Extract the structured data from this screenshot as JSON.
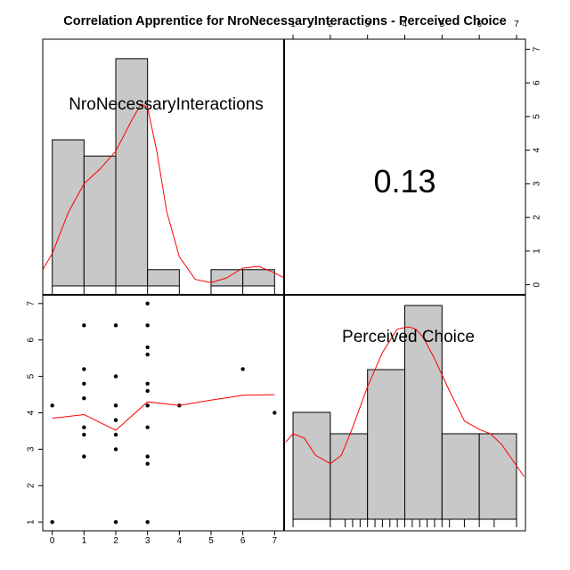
{
  "title": "Correlation Apprentice for NroNecessaryInteractions - Perceived Choice",
  "colors": {
    "bar_fill": "#c8c8c8",
    "bar_stroke": "#000000",
    "density": "#ff0000",
    "lowess": "#ff0000",
    "points": "#000000"
  },
  "chart_data": [
    {
      "type": "bar",
      "panel": "top-left diagonal histogram",
      "label": "NroNecessaryInteractions",
      "bins": [
        [
          0,
          1
        ],
        [
          1,
          2
        ],
        [
          2,
          3
        ],
        [
          3,
          4
        ],
        [
          4,
          5
        ],
        [
          5,
          6
        ],
        [
          6,
          7
        ]
      ],
      "counts": [
        9,
        8,
        14,
        1,
        0,
        1,
        1
      ],
      "density_curve": {
        "x": [
          -0.3,
          0,
          0.5,
          1,
          1.5,
          2,
          2.5,
          2.8,
          3,
          3.3,
          3.6,
          4,
          4.5,
          5,
          5.5,
          6,
          6.5,
          7,
          7.3
        ],
        "y": [
          1.0,
          2.0,
          4.5,
          6.3,
          7.2,
          8.3,
          10.2,
          11.2,
          11.0,
          8.2,
          4.6,
          1.8,
          0.4,
          0.2,
          0.5,
          1.1,
          1.2,
          0.8,
          0.5
        ]
      },
      "rug": [
        0,
        1,
        2,
        3,
        4,
        5,
        6,
        7
      ],
      "xlim": [
        -0.3,
        7.3
      ],
      "ylim": [
        0,
        15.2
      ]
    },
    {
      "type": "table",
      "panel": "top-right correlation",
      "correlation": "0.13",
      "top_axis_ticks": [
        "1",
        "2",
        "3",
        "4",
        "5",
        "6",
        "7"
      ],
      "right_axis_ticks": [
        "0",
        "1",
        "2",
        "3",
        "4",
        "5",
        "6",
        "7"
      ]
    },
    {
      "type": "scatter",
      "panel": "bottom-left scatter",
      "x_ticks": [
        "0",
        "1",
        "2",
        "3",
        "4",
        "5",
        "6",
        "7"
      ],
      "y_ticks": [
        "1",
        "2",
        "3",
        "4",
        "5",
        "6",
        "7"
      ],
      "xlim": [
        -0.3,
        7.3
      ],
      "ylim": [
        0.76,
        7.24
      ],
      "points": [
        [
          0,
          1
        ],
        [
          0,
          4.2
        ],
        [
          1,
          6.4
        ],
        [
          1,
          5.2
        ],
        [
          1,
          4.8
        ],
        [
          1,
          4.4
        ],
        [
          1,
          3.6
        ],
        [
          1,
          3.4
        ],
        [
          1,
          2.8
        ],
        [
          2,
          6.4
        ],
        [
          2,
          5.0
        ],
        [
          2,
          4.2
        ],
        [
          2,
          3.8
        ],
        [
          2,
          3.4
        ],
        [
          2,
          3.0
        ],
        [
          2,
          1.0
        ],
        [
          3,
          7.0
        ],
        [
          3,
          6.4
        ],
        [
          3,
          5.8
        ],
        [
          3,
          5.6
        ],
        [
          3,
          4.8
        ],
        [
          3,
          4.6
        ],
        [
          3,
          4.2
        ],
        [
          3,
          3.6
        ],
        [
          3,
          2.8
        ],
        [
          3,
          2.6
        ],
        [
          3,
          1.0
        ],
        [
          4,
          4.2
        ],
        [
          6,
          5.2
        ],
        [
          7,
          4.0
        ]
      ],
      "lowess": {
        "x": [
          0,
          1,
          2,
          3,
          4,
          5,
          6,
          7
        ],
        "y": [
          3.85,
          3.95,
          3.52,
          4.3,
          4.2,
          4.35,
          4.48,
          4.5
        ]
      }
    },
    {
      "type": "bar",
      "panel": "bottom-right diagonal histogram",
      "label": "Perceived Choice",
      "bins": [
        [
          1,
          2
        ],
        [
          2,
          3
        ],
        [
          3,
          4
        ],
        [
          4,
          5
        ],
        [
          5,
          6
        ],
        [
          6,
          7
        ]
      ],
      "counts": [
        5,
        4,
        7,
        10,
        4,
        4
      ],
      "density_curve": {
        "x": [
          0.8,
          1.0,
          1.3,
          1.6,
          2.0,
          2.3,
          2.6,
          3.0,
          3.4,
          3.8,
          4.1,
          4.3,
          4.5,
          4.8,
          5.2,
          5.6,
          6.0,
          6.3,
          6.6,
          7.0,
          7.2
        ],
        "y": [
          3.6,
          4.0,
          3.8,
          3.0,
          2.6,
          3.0,
          4.3,
          6.2,
          7.8,
          8.9,
          9.0,
          8.9,
          8.5,
          7.5,
          6.0,
          4.6,
          4.2,
          4.0,
          3.5,
          2.5,
          2.0
        ],
        "rug": [
          1,
          2,
          2.4,
          2.6,
          2.8,
          3.0,
          3.2,
          3.4,
          3.6,
          3.8,
          4.0,
          4.2,
          4.4,
          4.6,
          4.8,
          5.0,
          5.2,
          5.6,
          6.0,
          6.4,
          7.0
        ]
      },
      "xlim": [
        0.76,
        7.24
      ],
      "ylim": [
        0,
        10.5
      ]
    }
  ]
}
